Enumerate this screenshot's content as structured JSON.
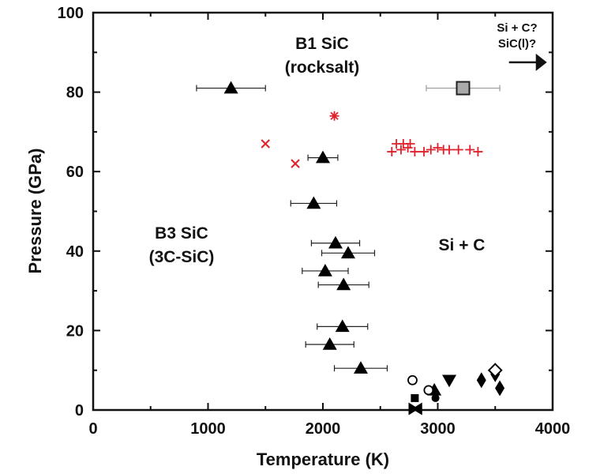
{
  "chart_data": {
    "type": "scatter",
    "xlabel": "Temperature (K)",
    "ylabel": "Pressure (GPa)",
    "xlim": [
      0,
      4000
    ],
    "ylim": [
      0,
      100
    ],
    "xticks": [
      0,
      1000,
      2000,
      3000,
      4000
    ],
    "yticks": [
      0,
      20,
      40,
      60,
      80,
      100
    ],
    "grid": false,
    "annotations": {
      "b1_line1": "B1 SiC",
      "b1_line2": "(rocksalt)",
      "b3_line1": "B3 SiC",
      "b3_line2": "(3C-SiC)",
      "sic_region": "Si + C",
      "liquid_line1": "Si + C?",
      "liquid_line2": "SiC(l)?"
    },
    "series": [
      {
        "marker": "triangle-up",
        "color": "#000000",
        "points": [
          {
            "x": 1200,
            "y": 81,
            "xerr": 300
          },
          {
            "x": 2000,
            "y": 63.5,
            "xerr": 130
          },
          {
            "x": 1920,
            "y": 52,
            "xerr": 200
          },
          {
            "x": 2110,
            "y": 42,
            "xerr": 210
          },
          {
            "x": 2220,
            "y": 39.5,
            "xerr": 230
          },
          {
            "x": 2020,
            "y": 35,
            "xerr": 200
          },
          {
            "x": 2180,
            "y": 31.5,
            "xerr": 220
          },
          {
            "x": 2170,
            "y": 21,
            "xerr": 220
          },
          {
            "x": 2060,
            "y": 16.5,
            "xerr": 210
          },
          {
            "x": 2330,
            "y": 10.5,
            "xerr": 230
          },
          {
            "x": 2970,
            "y": 5,
            "xerr": 0
          }
        ]
      },
      {
        "marker": "square",
        "color": "#aaaaaa",
        "points": [
          {
            "x": 3220,
            "y": 81,
            "xerr": 320
          }
        ]
      },
      {
        "marker": "asterisk",
        "color": "#e0202a",
        "points": [
          {
            "x": 2100,
            "y": 74
          }
        ]
      },
      {
        "marker": "x",
        "color": "#e0202a",
        "points": [
          {
            "x": 1500,
            "y": 67
          },
          {
            "x": 1760,
            "y": 62
          }
        ]
      },
      {
        "marker": "plus",
        "color": "#e0202a",
        "points": [
          {
            "x": 2600,
            "y": 65
          },
          {
            "x": 2640,
            "y": 67
          },
          {
            "x": 2680,
            "y": 65.5
          },
          {
            "x": 2700,
            "y": 67
          },
          {
            "x": 2740,
            "y": 66
          },
          {
            "x": 2760,
            "y": 67
          },
          {
            "x": 2800,
            "y": 65
          },
          {
            "x": 2880,
            "y": 65
          },
          {
            "x": 2940,
            "y": 65.5
          },
          {
            "x": 3000,
            "y": 66
          },
          {
            "x": 3050,
            "y": 65.5
          },
          {
            "x": 3100,
            "y": 65.5
          },
          {
            "x": 3180,
            "y": 65.5
          },
          {
            "x": 3280,
            "y": 65.5
          },
          {
            "x": 3350,
            "y": 65
          }
        ]
      },
      {
        "marker": "triangle-down",
        "color": "#000000",
        "points": [
          {
            "x": 3100,
            "y": 7.5
          }
        ]
      },
      {
        "marker": "diamond",
        "color": "#000000",
        "points": [
          {
            "x": 3380,
            "y": 7.5
          },
          {
            "x": 3500,
            "y": 9
          },
          {
            "x": 3540,
            "y": 5.5
          }
        ]
      },
      {
        "marker": "diamond-open",
        "color": "#000000",
        "points": [
          {
            "x": 3500,
            "y": 10
          }
        ]
      },
      {
        "marker": "circle-open",
        "color": "#000000",
        "points": [
          {
            "x": 2780,
            "y": 7.5
          },
          {
            "x": 2920,
            "y": 5
          }
        ]
      },
      {
        "marker": "circle",
        "color": "#000000",
        "points": [
          {
            "x": 2980,
            "y": 3
          }
        ]
      },
      {
        "marker": "square-filled",
        "color": "#000000",
        "points": [
          {
            "x": 2800,
            "y": 3
          }
        ]
      },
      {
        "marker": "triangle-right",
        "color": "#000000",
        "points": [
          {
            "x": 2780,
            "y": 0.3
          }
        ]
      },
      {
        "marker": "triangle-left",
        "color": "#000000",
        "points": [
          {
            "x": 2830,
            "y": 0.3
          }
        ]
      }
    ],
    "arrow": {
      "x_start": 3620,
      "x_end": 3950,
      "y": 87.5
    }
  }
}
